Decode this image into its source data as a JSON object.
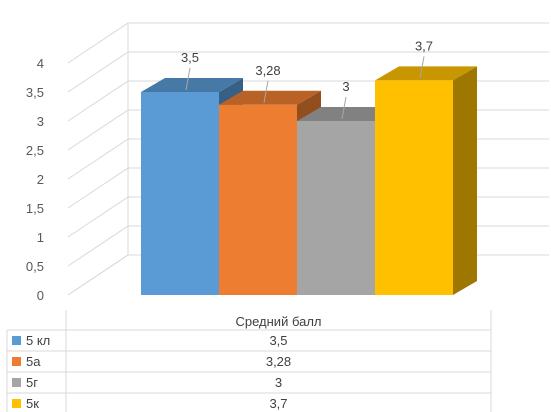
{
  "chart_data": {
    "type": "bar",
    "title": "",
    "categories": [
      "Средний балл"
    ],
    "series": [
      {
        "name": "5 кл",
        "values": [
          3.5
        ],
        "label": "3,5",
        "color": "#5B9BD5"
      },
      {
        "name": "5а",
        "values": [
          3.28
        ],
        "label": "3,28",
        "color": "#ED7D31"
      },
      {
        "name": "5г",
        "values": [
          3
        ],
        "label": "3",
        "color": "#A5A5A5"
      },
      {
        "name": "5к",
        "values": [
          3.7
        ],
        "label": "3,7",
        "color": "#FFC000"
      }
    ],
    "ylim": [
      0,
      4
    ],
    "yticks": [
      "0",
      "0,5",
      "1",
      "1,5",
      "2",
      "2,5",
      "3",
      "3,5",
      "4"
    ],
    "grid": true,
    "data_table": true,
    "style": "3d-clustered-column"
  }
}
